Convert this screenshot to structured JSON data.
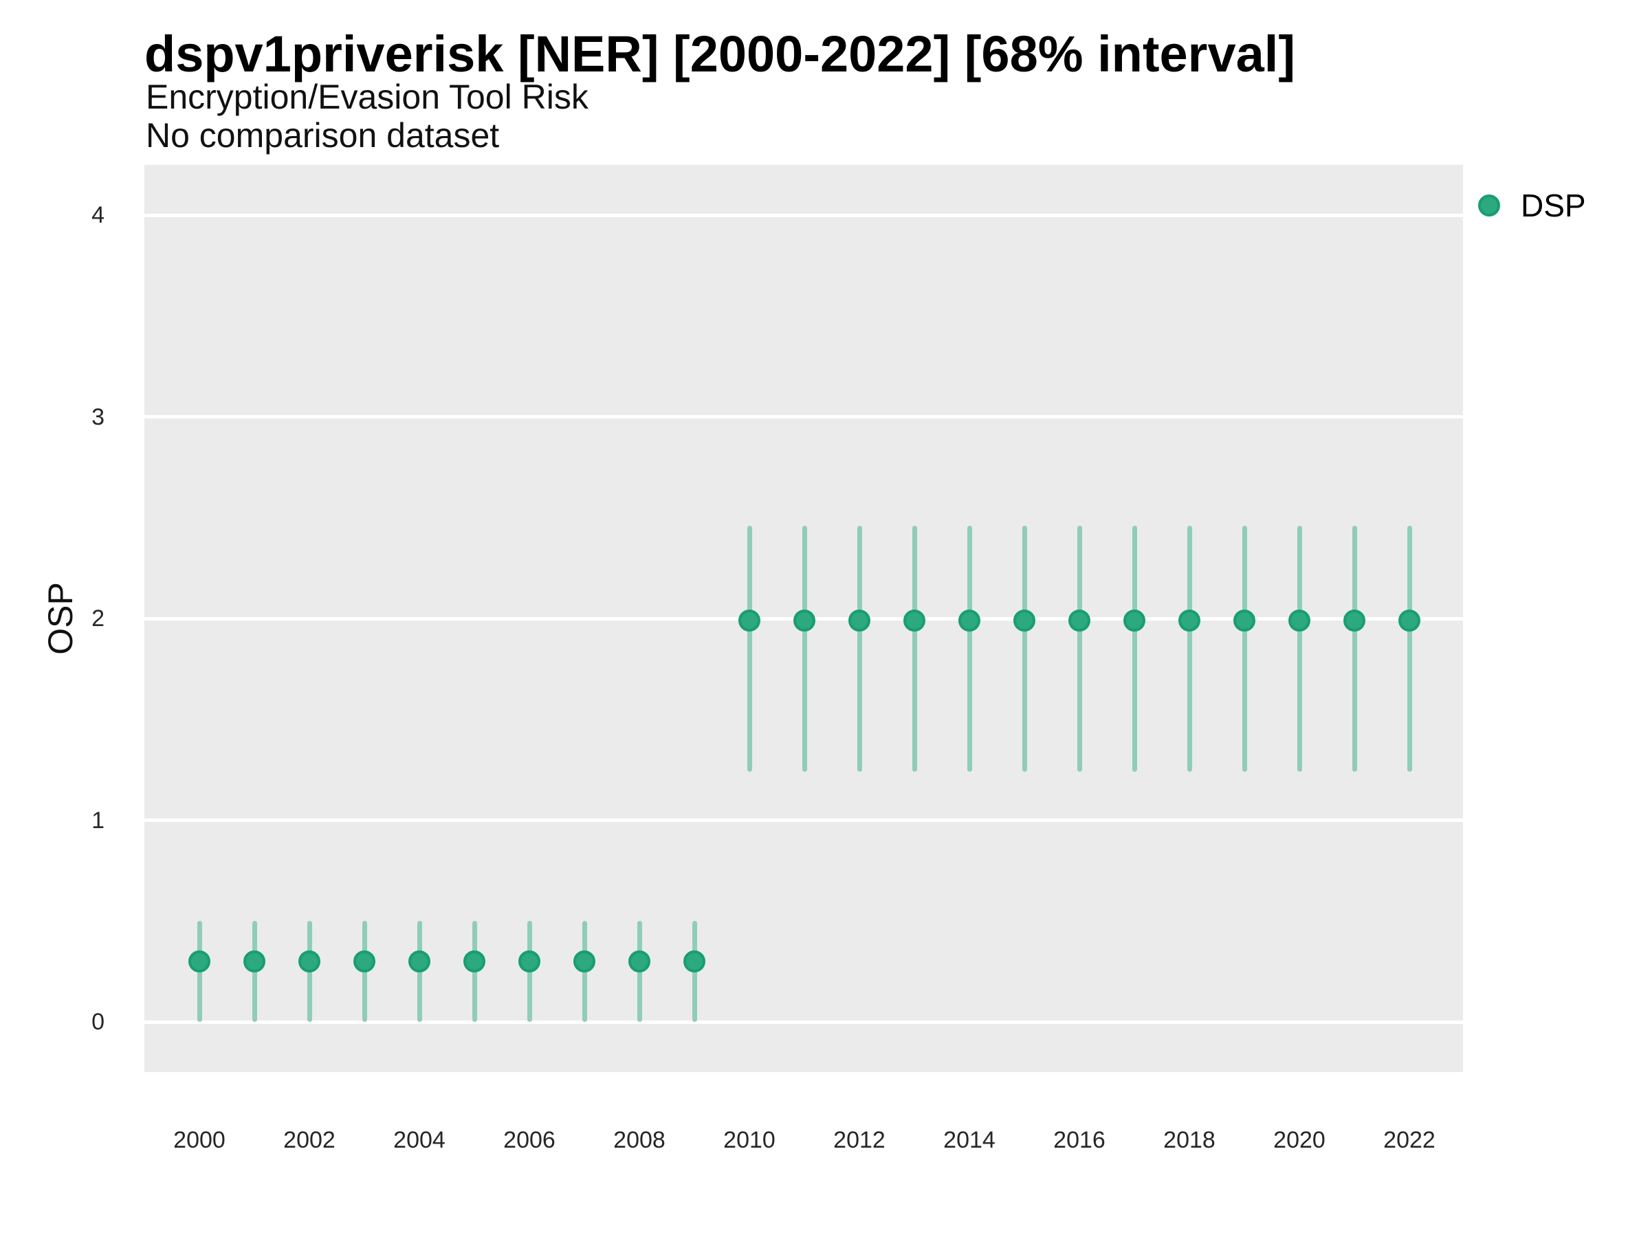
{
  "header": {
    "title": "dspv1priverisk [NER] [2000-2022] [68% interval]",
    "subtitle": "Encryption/Evasion Tool Risk",
    "note": "No comparison dataset"
  },
  "axes": {
    "y_title": "OSP"
  },
  "legend": {
    "items": [
      {
        "label": "DSP",
        "marker": "circle-icon"
      }
    ]
  },
  "colors": {
    "panel_bg": "#EBEBEB",
    "gridline": "#FFFFFF",
    "point_fill": "#2CA97E",
    "point_stroke": "#189E71",
    "interval_bar": "#90CDB7",
    "title_text": "#000000",
    "tick_text": "#262626"
  },
  "chart_data": {
    "type": "scatter",
    "title": "dspv1priverisk [NER] [2000-2022] [68% interval]",
    "subtitle": "Encryption/Evasion Tool Risk",
    "note": "No comparison dataset",
    "interval": "68%",
    "xlabel": "",
    "ylabel": "OSP",
    "xlim": [
      1999,
      2023
    ],
    "ylim": [
      -0.25,
      4.26
    ],
    "x_ticks": [
      2000,
      2002,
      2004,
      2006,
      2008,
      2010,
      2012,
      2014,
      2016,
      2018,
      2020,
      2022
    ],
    "y_ticks": [
      0,
      1,
      2,
      3,
      4
    ],
    "grid": "major-horizontal-white-on-gray",
    "legend_position": "right-top",
    "series": [
      {
        "name": "DSP",
        "points": [
          {
            "x": 2000,
            "y": 0.3,
            "lo": 0.0,
            "hi": 0.5
          },
          {
            "x": 2001,
            "y": 0.3,
            "lo": 0.0,
            "hi": 0.5
          },
          {
            "x": 2002,
            "y": 0.3,
            "lo": 0.0,
            "hi": 0.5
          },
          {
            "x": 2003,
            "y": 0.3,
            "lo": 0.0,
            "hi": 0.5
          },
          {
            "x": 2004,
            "y": 0.3,
            "lo": 0.0,
            "hi": 0.5
          },
          {
            "x": 2005,
            "y": 0.3,
            "lo": 0.0,
            "hi": 0.5
          },
          {
            "x": 2006,
            "y": 0.3,
            "lo": 0.0,
            "hi": 0.5
          },
          {
            "x": 2007,
            "y": 0.3,
            "lo": 0.0,
            "hi": 0.5
          },
          {
            "x": 2008,
            "y": 0.3,
            "lo": 0.0,
            "hi": 0.5
          },
          {
            "x": 2009,
            "y": 0.3,
            "lo": 0.0,
            "hi": 0.5
          },
          {
            "x": 2010,
            "y": 1.99,
            "lo": 1.24,
            "hi": 2.46
          },
          {
            "x": 2011,
            "y": 1.99,
            "lo": 1.24,
            "hi": 2.46
          },
          {
            "x": 2012,
            "y": 1.99,
            "lo": 1.24,
            "hi": 2.46
          },
          {
            "x": 2013,
            "y": 1.99,
            "lo": 1.24,
            "hi": 2.46
          },
          {
            "x": 2014,
            "y": 1.99,
            "lo": 1.24,
            "hi": 2.46
          },
          {
            "x": 2015,
            "y": 1.99,
            "lo": 1.24,
            "hi": 2.46
          },
          {
            "x": 2016,
            "y": 1.99,
            "lo": 1.24,
            "hi": 2.46
          },
          {
            "x": 2017,
            "y": 1.99,
            "lo": 1.24,
            "hi": 2.46
          },
          {
            "x": 2018,
            "y": 1.99,
            "lo": 1.24,
            "hi": 2.46
          },
          {
            "x": 2019,
            "y": 1.99,
            "lo": 1.24,
            "hi": 2.46
          },
          {
            "x": 2020,
            "y": 1.99,
            "lo": 1.24,
            "hi": 2.46
          },
          {
            "x": 2021,
            "y": 1.99,
            "lo": 1.24,
            "hi": 2.46
          },
          {
            "x": 2022,
            "y": 1.99,
            "lo": 1.24,
            "hi": 2.46
          }
        ]
      }
    ]
  }
}
